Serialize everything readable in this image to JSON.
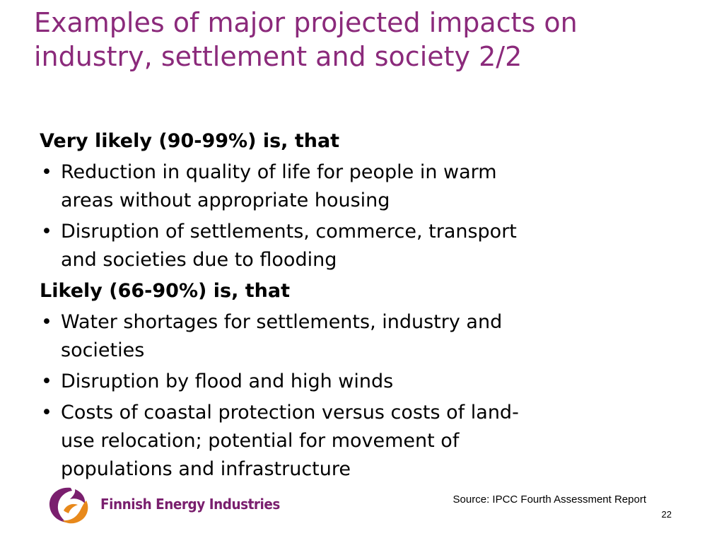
{
  "slide": {
    "title_lines": [
      "Examples of major projected impacts on",
      "industry, settlement and society 2/2"
    ],
    "sections": [
      {
        "heading": "Very likely (90-99%) is, that",
        "bullets": [
          {
            "lines": [
              "Reduction in quality of life for people in warm",
              "areas without appropriate housing"
            ]
          },
          {
            "lines": [
              "Disruption of settlements, commerce, transport",
              "and societies due to flooding"
            ]
          }
        ]
      },
      {
        "heading": "Likely (66-90%) is, that",
        "bullets": [
          {
            "lines": [
              "Water shortages for settlements, industry and",
              "societies"
            ]
          },
          {
            "lines": [
              "Disruption by flood and high winds"
            ]
          },
          {
            "lines": [
              "Costs of coastal protection versus costs of land-",
              "use relocation; potential for movement of",
              "populations and infrastructure"
            ]
          }
        ]
      }
    ],
    "bullet_glyph": "•",
    "source": "Source: IPCC Fourth Assessment Report",
    "page_number": "22"
  },
  "logo": {
    "text": "Finnish Energy Industries",
    "icon": "finnish-energy-swirl-icon",
    "colors": {
      "purple": "#7a1f6e",
      "orange": "#e8891b"
    }
  },
  "colors": {
    "title": "#8b2a7b",
    "body_text": "#000000",
    "background": "#ffffff"
  }
}
